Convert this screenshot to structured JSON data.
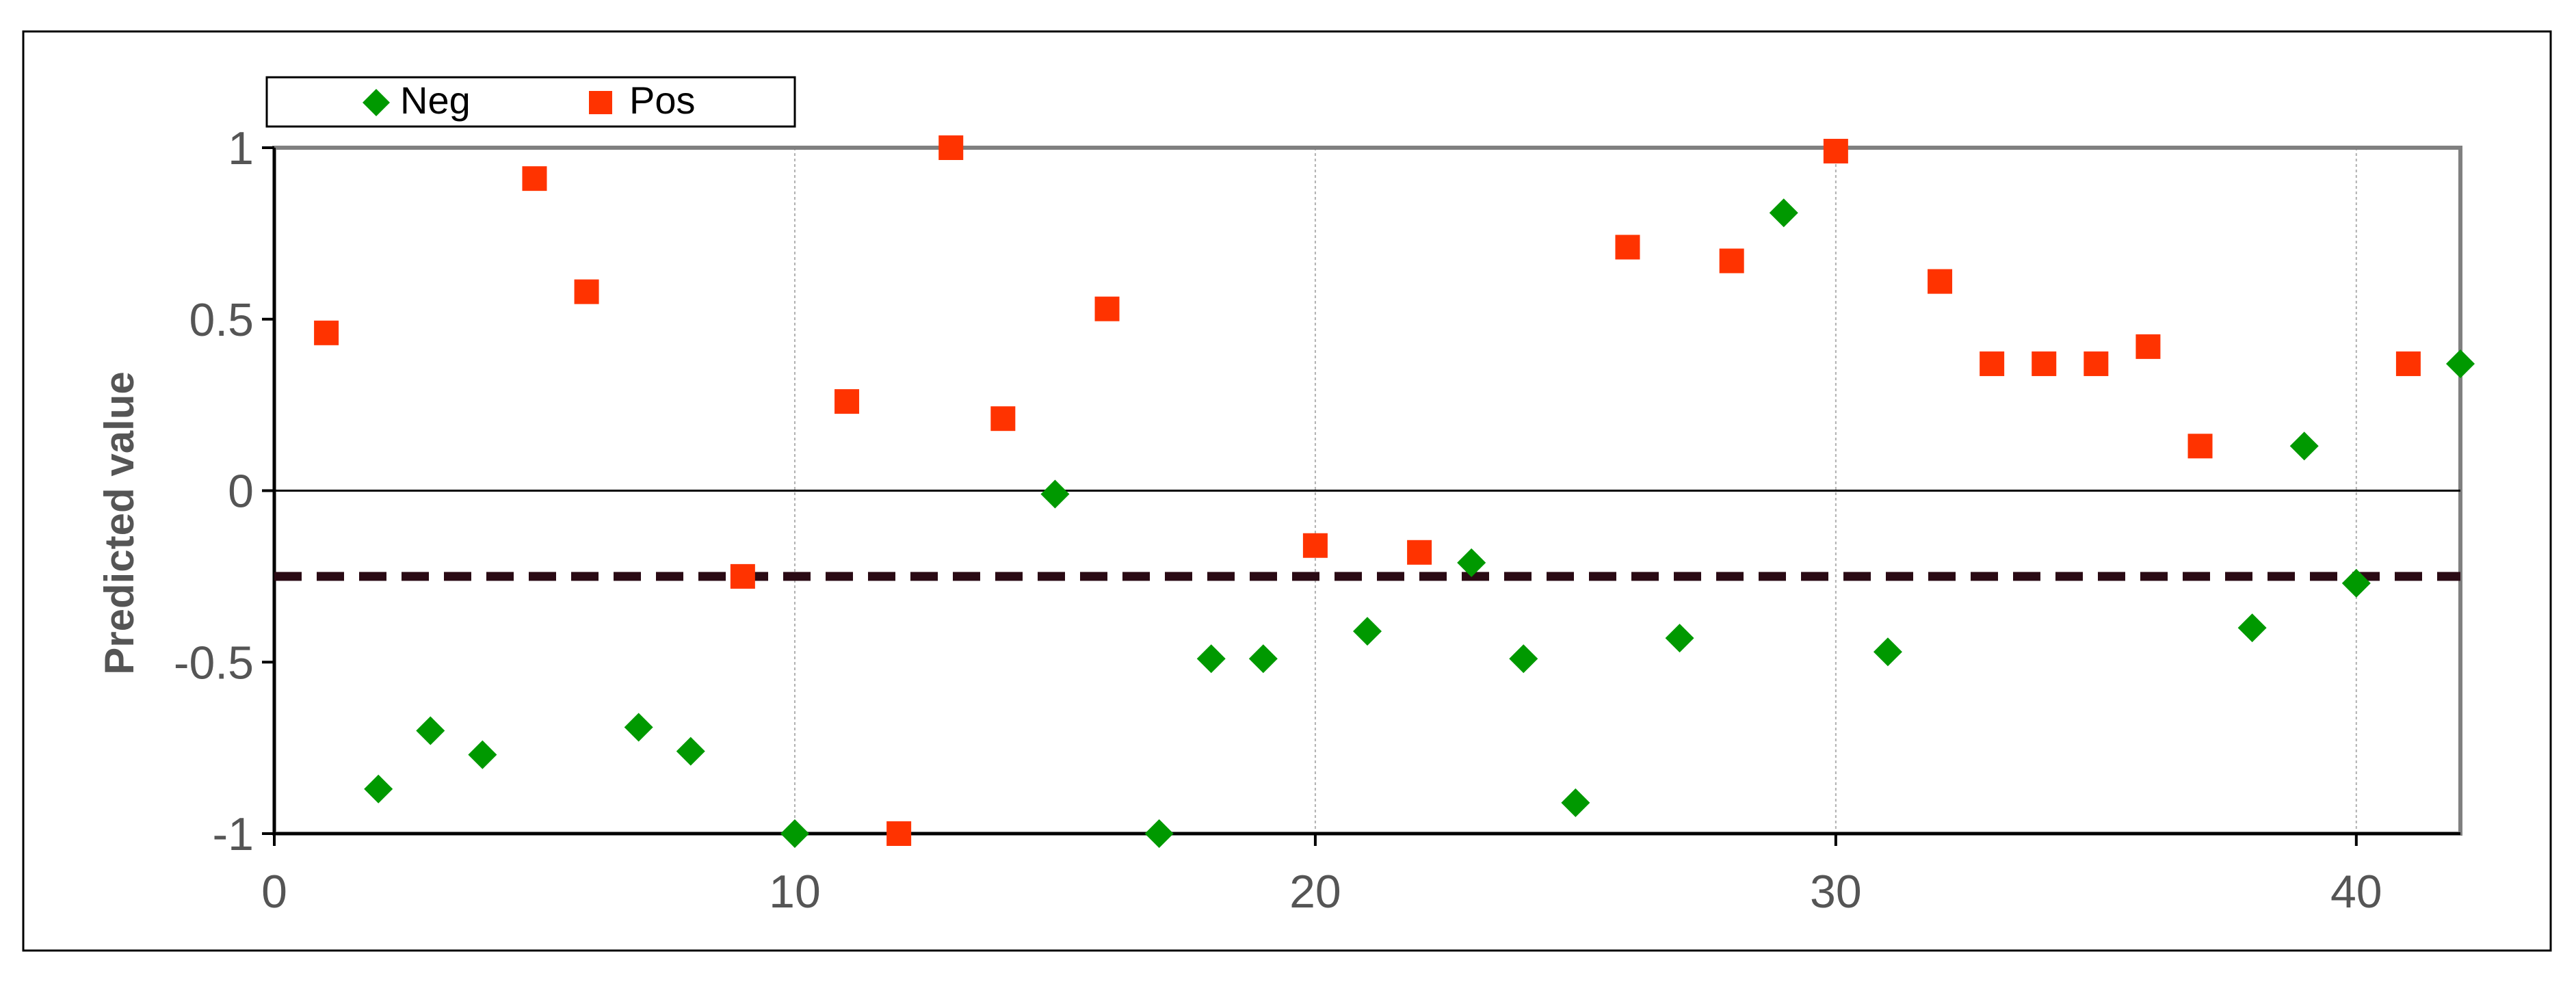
{
  "chart_data": {
    "type": "scatter",
    "title": "",
    "xlabel": "",
    "ylabel": "Predicted value",
    "xlim": [
      0,
      42
    ],
    "ylim": [
      -1,
      1
    ],
    "xticks": [
      0,
      10,
      20,
      30,
      40
    ],
    "yticks": [
      -1,
      -0.5,
      0,
      0.5,
      1
    ],
    "ytick_labels": [
      "-1",
      "-0.5",
      "0",
      "0.5",
      "1"
    ],
    "grid": true,
    "legend_placement": "top-left",
    "threshold": -0.25,
    "series": [
      {
        "name": "Neg",
        "marker": "diamond",
        "color": "#009900",
        "points": [
          {
            "x": 2,
            "y": -0.87
          },
          {
            "x": 3,
            "y": -0.7
          },
          {
            "x": 4,
            "y": -0.77
          },
          {
            "x": 7,
            "y": -0.69
          },
          {
            "x": 8,
            "y": -0.76
          },
          {
            "x": 10,
            "y": -1.0
          },
          {
            "x": 15,
            "y": -0.01
          },
          {
            "x": 17,
            "y": -1.0
          },
          {
            "x": 18,
            "y": -0.49
          },
          {
            "x": 19,
            "y": -0.49
          },
          {
            "x": 21,
            "y": -0.41
          },
          {
            "x": 23,
            "y": -0.21
          },
          {
            "x": 24,
            "y": -0.49
          },
          {
            "x": 25,
            "y": -0.91
          },
          {
            "x": 27,
            "y": -0.43
          },
          {
            "x": 29,
            "y": 0.81
          },
          {
            "x": 31,
            "y": -0.47
          },
          {
            "x": 38,
            "y": -0.4
          },
          {
            "x": 39,
            "y": 0.13
          },
          {
            "x": 40,
            "y": -0.27
          },
          {
            "x": 42,
            "y": 0.37
          }
        ]
      },
      {
        "name": "Pos",
        "marker": "square",
        "color": "#ff3300",
        "points": [
          {
            "x": 1,
            "y": 0.46
          },
          {
            "x": 5,
            "y": 0.91
          },
          {
            "x": 6,
            "y": 0.58
          },
          {
            "x": 9,
            "y": -0.25
          },
          {
            "x": 11,
            "y": 0.26
          },
          {
            "x": 12,
            "y": -1.0
          },
          {
            "x": 13,
            "y": 1.0
          },
          {
            "x": 14,
            "y": 0.21
          },
          {
            "x": 16,
            "y": 0.53
          },
          {
            "x": 20,
            "y": -0.16
          },
          {
            "x": 22,
            "y": -0.18
          },
          {
            "x": 26,
            "y": 0.71
          },
          {
            "x": 28,
            "y": 0.67
          },
          {
            "x": 30,
            "y": 0.99
          },
          {
            "x": 32,
            "y": 0.61
          },
          {
            "x": 33,
            "y": 0.37
          },
          {
            "x": 34,
            "y": 0.37
          },
          {
            "x": 35,
            "y": 0.37
          },
          {
            "x": 36,
            "y": 0.42
          },
          {
            "x": 37,
            "y": 0.13
          },
          {
            "x": 41,
            "y": 0.37
          }
        ]
      }
    ]
  }
}
